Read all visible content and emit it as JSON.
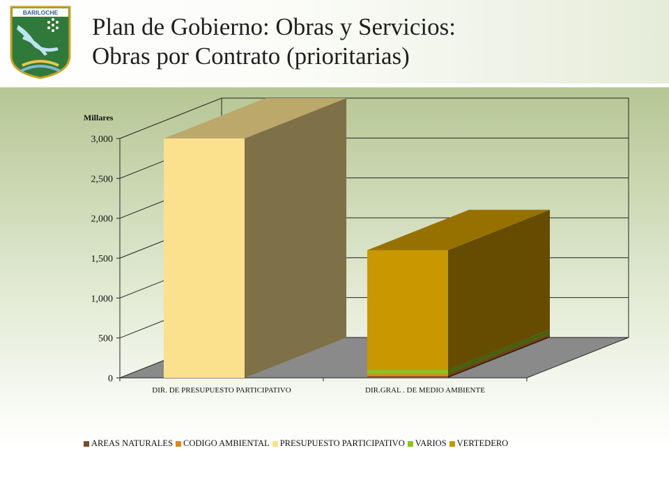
{
  "slide": {
    "title_line1": "Plan de Gobierno: Obras y Servicios:",
    "title_line2": "Obras por Contrato (prioritarias)",
    "logo_text": "BARILOCHE"
  },
  "colors": {
    "AREAS NATURALES": "#7a4a26",
    "CODIGO AMBIENTAL": "#d98a1e",
    "PRESUPUESTO PARTICIPATIVO": "#fbe08e",
    "VARIOS": "#8cc21f",
    "VERTEDERO": "#c99700"
  },
  "chart_data": {
    "type": "bar",
    "stacked": true,
    "three_d": true,
    "unit_label": "Millares",
    "ylim": [
      0,
      3000
    ],
    "yticks": [
      "0",
      "500",
      "1,000",
      "1,500",
      "2,000",
      "2,500",
      "3,000"
    ],
    "ytick_values": [
      0,
      500,
      1000,
      1500,
      2000,
      2500,
      3000
    ],
    "categories": [
      "DIR. DE PRESUPUESTO PARTICIPATIVO",
      "DIR.GRAL . DE MEDIO AMBIENTE"
    ],
    "series": [
      {
        "name": "AREAS NATURALES",
        "values": [
          0,
          20
        ]
      },
      {
        "name": "CODIGO AMBIENTAL",
        "values": [
          0,
          30
        ]
      },
      {
        "name": "PRESUPUESTO PARTICIPATIVO",
        "values": [
          3000,
          0
        ]
      },
      {
        "name": "VARIOS",
        "values": [
          0,
          50
        ]
      },
      {
        "name": "VERTEDERO",
        "values": [
          0,
          1500
        ]
      }
    ],
    "grid": true,
    "legend_position": "bottom"
  }
}
